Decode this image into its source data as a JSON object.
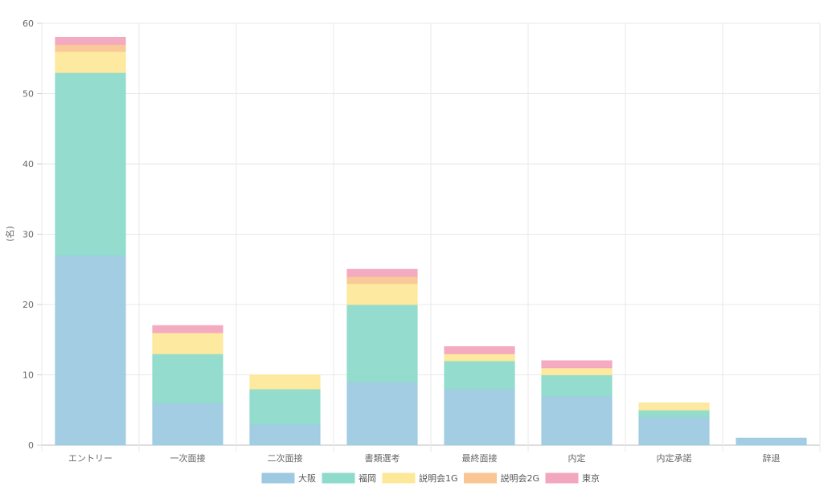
{
  "chart_data": {
    "type": "bar",
    "stacked": true,
    "categories": [
      "エントリー",
      "一次面接",
      "二次面接",
      "書類選考",
      "最終面接",
      "内定",
      "内定承諾",
      "辞退"
    ],
    "series": [
      {
        "name": "大阪",
        "values": [
          27,
          6,
          3,
          9,
          8,
          7,
          4,
          1
        ],
        "color": "#9ecae1"
      },
      {
        "name": "福岡",
        "values": [
          26,
          7,
          5,
          11,
          4,
          3,
          1,
          0
        ],
        "color": "#8edbcb"
      },
      {
        "name": "説明会1G",
        "values": [
          3,
          3,
          2,
          3,
          1,
          1,
          1,
          0
        ],
        "color": "#fde89a"
      },
      {
        "name": "説明会2G",
        "values": [
          1,
          0,
          0,
          1,
          0,
          0,
          0,
          0
        ],
        "color": "#f9c693"
      },
      {
        "name": "東京",
        "values": [
          1,
          1,
          0,
          1,
          1,
          1,
          0,
          0
        ],
        "color": "#f3a7bf"
      }
    ],
    "ylabel": "(名)",
    "ylim": [
      0,
      60
    ],
    "yticks": [
      0,
      10,
      20,
      30,
      40,
      50,
      60
    ],
    "grid": true,
    "legend_position": "bottom"
  }
}
